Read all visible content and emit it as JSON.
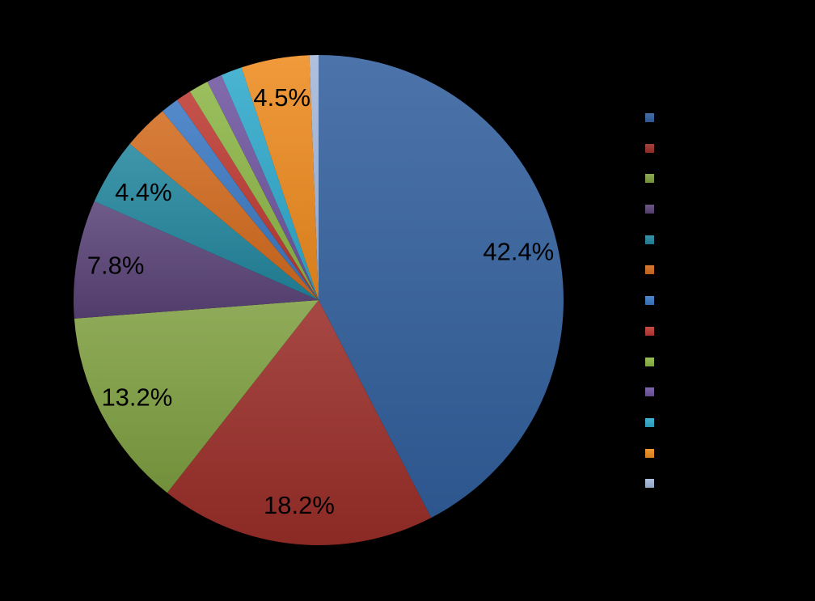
{
  "background_color": "#000000",
  "chart_data": {
    "type": "pie",
    "title": "",
    "direction": "clockwise",
    "start_angle_deg": 0,
    "legend_position": "right",
    "label_color": "#000000",
    "slices": [
      {
        "value": 42.4,
        "label": "42.4%",
        "color": "#315F9D"
      },
      {
        "value": 18.2,
        "label": "18.2%",
        "color": "#9A2D28"
      },
      {
        "value": 13.2,
        "label": "13.2%",
        "color": "#7FA041"
      },
      {
        "value": 7.8,
        "label": "7.8%",
        "color": "#5A4377"
      },
      {
        "value": 4.4,
        "label": "4.4%",
        "color": "#22869E"
      },
      {
        "value": 3.0,
        "label": "",
        "color": "#D26B1E"
      },
      {
        "value": 1.2,
        "label": "",
        "color": "#3A78C2"
      },
      {
        "value": 1.0,
        "label": "",
        "color": "#BC3931"
      },
      {
        "value": 1.3,
        "label": "",
        "color": "#8CB646"
      },
      {
        "value": 1.0,
        "label": "",
        "color": "#6E55A0"
      },
      {
        "value": 1.4,
        "label": "",
        "color": "#2FA9CB"
      },
      {
        "value": 4.5,
        "label": "4.5%",
        "color": "#EE8B1F"
      },
      {
        "value": 0.6,
        "label": "",
        "color": "#A4B7DA"
      }
    ]
  }
}
